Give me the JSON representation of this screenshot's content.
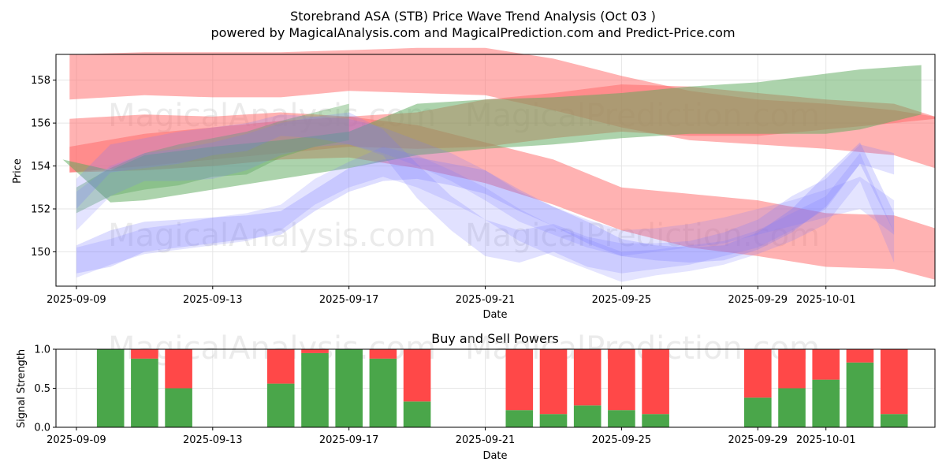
{
  "chart_data": [
    {
      "type": "area",
      "title_line1": "Storebrand ASA (STB) Price Wave Trend Analysis (Oct 03 )",
      "title_line2": "powered by MagicalAnalysis.com and MagicalPrediction.com and Predict-Price.com",
      "xlabel": "Date",
      "ylabel": "Price",
      "xlim": [
        -0.6,
        25.2
      ],
      "ylim": [
        148.4,
        159.2
      ],
      "x_ticks": [
        {
          "x": 0,
          "label": "2025-09-09"
        },
        {
          "x": 4,
          "label": "2025-09-13"
        },
        {
          "x": 8,
          "label": "2025-09-17"
        },
        {
          "x": 12,
          "label": "2025-09-21"
        },
        {
          "x": 16,
          "label": "2025-09-25"
        },
        {
          "x": 20,
          "label": "2025-09-29"
        },
        {
          "x": 22,
          "label": "2025-10-01"
        }
      ],
      "y_ticks": [
        150,
        152,
        154,
        156,
        158
      ],
      "grid": true,
      "watermarks": [
        "MagicalAnalysis.com",
        "MagicalPrediction.com"
      ],
      "bands": [
        {
          "color": "#ff6666",
          "opacity": 0.5,
          "x": [
            -0.2,
            2,
            4,
            6,
            8,
            10,
            12,
            14,
            16,
            18,
            20,
            22,
            24,
            25.2
          ],
          "lower": [
            157.1,
            157.3,
            157.2,
            157.2,
            157.5,
            157.4,
            157.3,
            156.6,
            155.8,
            155.2,
            155.0,
            154.8,
            154.5,
            153.9
          ],
          "upper": [
            159.2,
            159.3,
            159.3,
            159.3,
            159.4,
            159.5,
            159.5,
            159.0,
            158.2,
            157.5,
            157.1,
            156.9,
            156.6,
            156.3
          ]
        },
        {
          "color": "#ff6666",
          "opacity": 0.5,
          "x": [
            -0.2,
            2,
            4,
            6,
            8,
            10,
            12,
            14,
            16,
            18,
            20,
            22,
            24,
            25.2
          ],
          "lower": [
            153.7,
            153.8,
            154.0,
            154.3,
            154.4,
            153.9,
            153.2,
            152.2,
            151.0,
            150.2,
            149.8,
            149.3,
            149.2,
            148.7
          ],
          "upper": [
            156.2,
            156.4,
            156.3,
            156.5,
            156.3,
            155.9,
            155.1,
            154.3,
            153.0,
            152.7,
            152.4,
            151.8,
            151.7,
            151.1
          ]
        },
        {
          "color": "#ff6666",
          "opacity": 0.5,
          "x": [
            -0.2,
            2,
            4,
            6,
            8,
            10,
            12,
            14,
            16,
            18,
            20,
            22,
            24,
            25.2
          ],
          "lower": [
            153.7,
            154.0,
            154.3,
            154.6,
            154.9,
            154.8,
            154.9,
            155.3,
            155.6,
            155.4,
            155.4,
            155.7,
            156.0,
            156.2
          ],
          "upper": [
            154.9,
            155.5,
            155.8,
            156.1,
            156.3,
            156.5,
            157.1,
            157.4,
            157.8,
            157.7,
            157.4,
            157.1,
            156.9,
            156.3
          ]
        },
        {
          "color": "#5aa85a",
          "opacity": 0.5,
          "x": [
            -0.4,
            1,
            2,
            4,
            6,
            8,
            10,
            12,
            14,
            16,
            18,
            20,
            22,
            23,
            24.8
          ],
          "lower": [
            154.3,
            152.3,
            152.4,
            152.9,
            153.4,
            153.9,
            154.5,
            154.8,
            155.0,
            155.3,
            155.5,
            155.5,
            155.5,
            155.7,
            156.4
          ],
          "upper": [
            154.3,
            153.8,
            154.5,
            154.9,
            155.2,
            155.6,
            156.9,
            157.1,
            157.2,
            157.4,
            157.7,
            157.9,
            158.3,
            158.5,
            158.7
          ]
        },
        {
          "color": "#5aa85a",
          "opacity": 0.4,
          "x": [
            0,
            1,
            2,
            3,
            4,
            5,
            6,
            7,
            8
          ],
          "lower": [
            151.8,
            152.6,
            152.9,
            153.1,
            153.5,
            153.6,
            154.4,
            154.9,
            155.2
          ],
          "upper": [
            153.0,
            153.9,
            154.6,
            155.0,
            155.3,
            155.6,
            156.1,
            156.5,
            156.9
          ]
        },
        {
          "color": "#7777ff",
          "opacity": 0.25,
          "x": [
            0,
            1,
            2,
            3,
            4,
            5,
            6,
            7,
            8,
            9,
            10,
            11,
            12,
            13,
            14,
            15,
            16,
            17,
            18,
            19,
            20,
            21,
            22,
            23,
            24
          ],
          "lower": [
            149.0,
            149.3,
            150.0,
            150.2,
            150.4,
            150.6,
            150.8,
            151.9,
            152.8,
            153.3,
            153.4,
            153.1,
            152.7,
            151.9,
            151.2,
            150.4,
            149.8,
            149.6,
            149.5,
            149.6,
            150.1,
            150.9,
            152.1,
            154.1,
            150.9
          ],
          "upper": [
            150.3,
            151.0,
            151.4,
            151.5,
            151.6,
            151.7,
            151.9,
            152.9,
            153.9,
            154.3,
            154.4,
            154.1,
            153.8,
            152.9,
            152.1,
            151.4,
            150.6,
            150.3,
            150.2,
            150.3,
            150.9,
            152.0,
            153.6,
            155.1,
            151.8
          ]
        },
        {
          "color": "#7777ff",
          "opacity": 0.22,
          "x": [
            0,
            1,
            2,
            3,
            4,
            5,
            6,
            7,
            8,
            9,
            10,
            11,
            12,
            13,
            14,
            15,
            16,
            17,
            18,
            19,
            20,
            21,
            22,
            23,
            24
          ],
          "lower": [
            152.0,
            153.7,
            153.9,
            154.1,
            154.5,
            154.7,
            155.4,
            155.3,
            155.0,
            154.5,
            152.5,
            151.0,
            149.8,
            149.5,
            150.0,
            149.3,
            149.0,
            149.2,
            149.4,
            149.8,
            150.2,
            151.0,
            152.0,
            154.1,
            153.6
          ],
          "upper": [
            153.4,
            155.0,
            155.3,
            155.6,
            155.8,
            156.0,
            156.4,
            156.3,
            156.5,
            155.7,
            154.1,
            152.6,
            151.5,
            151.0,
            151.3,
            150.7,
            150.4,
            150.4,
            150.5,
            150.9,
            151.5,
            152.6,
            153.4,
            155.0,
            154.6
          ]
        },
        {
          "color": "#7777ff",
          "opacity": 0.2,
          "x": [
            0,
            1,
            2,
            3,
            4,
            5,
            6,
            7,
            8,
            9,
            10,
            11,
            12,
            13,
            14,
            15,
            16,
            17,
            18,
            19,
            20,
            21,
            22,
            23,
            24
          ],
          "lower": [
            148.8,
            149.4,
            149.9,
            150.1,
            150.3,
            150.5,
            151.0,
            152.2,
            153.0,
            153.5,
            153.0,
            152.3,
            151.5,
            150.5,
            149.8,
            149.2,
            148.6,
            148.9,
            149.1,
            149.4,
            149.9,
            150.5,
            151.3,
            153.3,
            149.5
          ],
          "upper": [
            150.2,
            150.6,
            151.1,
            151.3,
            151.6,
            151.8,
            152.2,
            153.4,
            154.2,
            154.9,
            154.5,
            153.8,
            153.0,
            152.0,
            151.2,
            150.6,
            150.0,
            150.1,
            150.3,
            150.5,
            151.0,
            151.8,
            152.6,
            154.6,
            150.9
          ]
        },
        {
          "color": "#7777ff",
          "opacity": 0.2,
          "x": [
            0,
            1,
            2,
            3,
            4,
            5,
            6,
            7,
            8,
            9,
            10,
            11,
            12,
            13,
            14,
            15,
            16,
            17,
            18,
            19,
            20,
            21,
            22,
            23,
            24
          ],
          "lower": [
            151.0,
            152.6,
            153.3,
            153.3,
            153.4,
            153.8,
            154.5,
            154.9,
            155.0,
            154.6,
            154.0,
            153.3,
            152.4,
            151.4,
            150.8,
            150.2,
            149.8,
            150.0,
            150.2,
            150.4,
            150.8,
            151.2,
            151.6,
            152.0,
            150.8
          ],
          "upper": [
            152.8,
            154.0,
            154.6,
            154.8,
            155.1,
            155.5,
            156.0,
            156.3,
            156.2,
            155.8,
            155.2,
            154.6,
            153.8,
            152.8,
            152.1,
            151.5,
            151.0,
            151.1,
            151.3,
            151.6,
            152.0,
            152.4,
            152.9,
            153.5,
            152.4
          ]
        }
      ]
    },
    {
      "type": "bar",
      "title": "Buy and Sell Powers",
      "xlabel": "Date",
      "ylabel": "Signal Strength",
      "xlim": [
        -0.6,
        25.2
      ],
      "ylim": [
        0,
        1.0
      ],
      "y_ticks": [
        0.0,
        0.5,
        1.0
      ],
      "x_ticks": [
        {
          "x": 0,
          "label": "2025-09-09"
        },
        {
          "x": 4,
          "label": "2025-09-13"
        },
        {
          "x": 8,
          "label": "2025-09-17"
        },
        {
          "x": 12,
          "label": "2025-09-21"
        },
        {
          "x": 16,
          "label": "2025-09-25"
        },
        {
          "x": 20,
          "label": "2025-09-29"
        },
        {
          "x": 22,
          "label": "2025-10-01"
        }
      ],
      "grid": true,
      "buy_color": "#4aa64a",
      "sell_color": "#ff4848",
      "bars": [
        {
          "x": 1,
          "buy": 1.0,
          "sell": 0.0
        },
        {
          "x": 2,
          "buy": 0.88,
          "sell": 0.12
        },
        {
          "x": 3,
          "buy": 0.5,
          "sell": 0.5
        },
        {
          "x": 6,
          "buy": 0.56,
          "sell": 0.44
        },
        {
          "x": 7,
          "buy": 0.95,
          "sell": 0.05
        },
        {
          "x": 8,
          "buy": 1.0,
          "sell": 0.0
        },
        {
          "x": 9,
          "buy": 0.88,
          "sell": 0.12
        },
        {
          "x": 10,
          "buy": 0.33,
          "sell": 0.67
        },
        {
          "x": 13,
          "buy": 0.22,
          "sell": 0.78
        },
        {
          "x": 14,
          "buy": 0.17,
          "sell": 0.83
        },
        {
          "x": 15,
          "buy": 0.28,
          "sell": 0.72
        },
        {
          "x": 16,
          "buy": 0.22,
          "sell": 0.78
        },
        {
          "x": 17,
          "buy": 0.17,
          "sell": 0.83
        },
        {
          "x": 20,
          "buy": 0.38,
          "sell": 0.62
        },
        {
          "x": 21,
          "buy": 0.5,
          "sell": 0.5
        },
        {
          "x": 22,
          "buy": 0.61,
          "sell": 0.39
        },
        {
          "x": 23,
          "buy": 0.83,
          "sell": 0.17
        },
        {
          "x": 24,
          "buy": 0.17,
          "sell": 0.83
        }
      ]
    }
  ]
}
